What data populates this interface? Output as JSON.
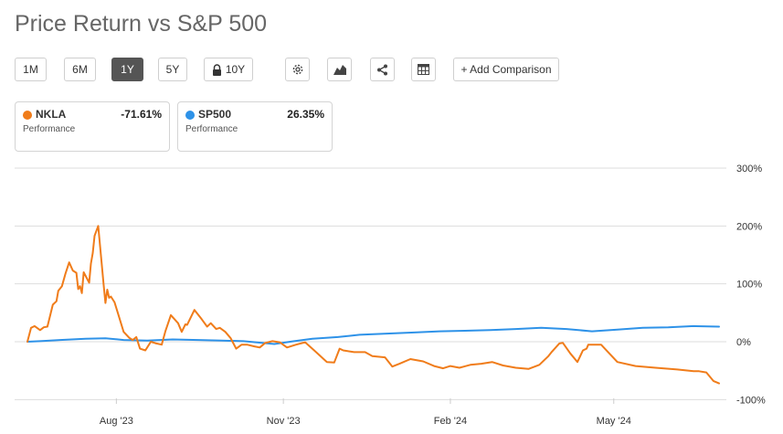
{
  "title": "Price Return vs S&P 500",
  "toolbar": {
    "ranges": [
      "1M",
      "6M",
      "1Y",
      "5Y",
      "10Y"
    ],
    "active_range": "1Y",
    "add_comparison_label": "+ Add Comparison",
    "icons": [
      "settings-icon",
      "chart-type-icon",
      "share-icon",
      "table-icon"
    ]
  },
  "cards": [
    {
      "ticker": "NKLA",
      "performance": "-71.61%",
      "label": "Performance",
      "color": "#f07c1a"
    },
    {
      "ticker": "SP500",
      "performance": "26.35%",
      "label": "Performance",
      "color": "#2e92e8"
    }
  ],
  "chart_data": {
    "type": "line",
    "title": "",
    "xlabel": "",
    "ylabel": "",
    "ylim": [
      -100,
      300
    ],
    "y_ticks": [
      -100,
      0,
      100,
      200,
      300
    ],
    "y_tick_labels": [
      "-100%",
      "0%",
      "100%",
      "200%",
      "300%"
    ],
    "x_ticks": [
      "Aug '23",
      "Nov '23",
      "Feb '24",
      "May '24"
    ],
    "grid": true,
    "series": [
      {
        "name": "NKLA",
        "color": "#f07c1a",
        "x": [
          "2023-06-13",
          "2023-06-15",
          "2023-06-17",
          "2023-06-20",
          "2023-06-22",
          "2023-06-24",
          "2023-06-27",
          "2023-06-29",
          "2023-06-30",
          "2023-07-02",
          "2023-07-04",
          "2023-07-06",
          "2023-07-08",
          "2023-07-10",
          "2023-07-11",
          "2023-07-12",
          "2023-07-13",
          "2023-07-14",
          "2023-07-17",
          "2023-07-18",
          "2023-07-19",
          "2023-07-20",
          "2023-07-22",
          "2023-07-25",
          "2023-07-26",
          "2023-07-27",
          "2023-07-28",
          "2023-07-29",
          "2023-07-31",
          "2023-08-02",
          "2023-08-05",
          "2023-08-08",
          "2023-08-10",
          "2023-08-12",
          "2023-08-14",
          "2023-08-17",
          "2023-08-20",
          "2023-08-23",
          "2023-08-26",
          "2023-08-28",
          "2023-08-31",
          "2023-09-04",
          "2023-09-06",
          "2023-09-08",
          "2023-09-09",
          "2023-09-13",
          "2023-09-17",
          "2023-09-20",
          "2023-09-22",
          "2023-09-25",
          "2023-09-27",
          "2023-09-30",
          "2023-10-03",
          "2023-10-06",
          "2023-10-09",
          "2023-10-12",
          "2023-10-16",
          "2023-10-19",
          "2023-10-22",
          "2023-10-26",
          "2023-10-30",
          "2023-11-03",
          "2023-11-08",
          "2023-11-13",
          "2023-11-18",
          "2023-11-25",
          "2023-11-29",
          "2023-12-02",
          "2023-12-04",
          "2023-12-10",
          "2023-12-16",
          "2023-12-20",
          "2023-12-27",
          "2023-12-31",
          "2024-01-04",
          "2024-01-10",
          "2024-01-17",
          "2024-01-23",
          "2024-01-28",
          "2024-02-01",
          "2024-02-06",
          "2024-02-12",
          "2024-02-18",
          "2024-02-24",
          "2024-03-01",
          "2024-03-08",
          "2024-03-15",
          "2024-03-21",
          "2024-03-26",
          "2024-03-28",
          "2024-04-01",
          "2024-04-03",
          "2024-04-07",
          "2024-04-11",
          "2024-04-14",
          "2024-04-16",
          "2024-04-17",
          "2024-04-24",
          "2024-05-03",
          "2024-05-13",
          "2024-05-24",
          "2024-06-05",
          "2024-06-14",
          "2024-06-17",
          "2024-06-21",
          "2024-06-25",
          "2024-06-28"
        ],
        "y": [
          0,
          24,
          27,
          20,
          25,
          26,
          64,
          70,
          88,
          96,
          118,
          137,
          123,
          119,
          91,
          96,
          84,
          120,
          102,
          135,
          153,
          183,
          200,
          99,
          67,
          90,
          76,
          78,
          68,
          48,
          17,
          7,
          3,
          8,
          -12,
          -15,
          0,
          -3,
          -5,
          18,
          46,
          32,
          17,
          30,
          29,
          55,
          39,
          26,
          32,
          22,
          24,
          17,
          6,
          -12,
          -5,
          -5,
          -8,
          -10,
          -2,
          1,
          -1,
          -10,
          -5,
          -1,
          -15,
          -35,
          -36,
          -12,
          -15,
          -18,
          -18,
          -25,
          -27,
          -43,
          -38,
          -30,
          -34,
          -42,
          -46,
          -42,
          -45,
          -40,
          -38,
          -35,
          -41,
          -45,
          -47,
          -40,
          -25,
          -17,
          -3,
          -2,
          -20,
          -35,
          -15,
          -12,
          -5,
          -5,
          -35,
          -42,
          -45,
          -48,
          -51,
          -51,
          -53,
          -68,
          -72
        ]
      },
      {
        "name": "SP500",
        "color": "#2e92e8",
        "x": [
          "2023-06-13",
          "2023-06-20",
          "2023-07-01",
          "2023-07-15",
          "2023-07-26",
          "2023-08-05",
          "2023-08-18",
          "2023-09-01",
          "2023-09-15",
          "2023-09-28",
          "2023-10-10",
          "2023-10-27",
          "2023-11-07",
          "2023-11-17",
          "2023-12-01",
          "2023-12-13",
          "2023-12-28",
          "2024-01-12",
          "2024-01-26",
          "2024-02-09",
          "2024-02-23",
          "2024-03-08",
          "2024-03-22",
          "2024-04-05",
          "2024-04-19",
          "2024-05-03",
          "2024-05-17",
          "2024-05-31",
          "2024-06-14",
          "2024-06-28"
        ],
        "y": [
          0,
          1,
          3,
          5,
          6,
          3,
          2,
          4,
          3,
          2,
          1,
          -4,
          1,
          5,
          8,
          12,
          14,
          16,
          18,
          19,
          20,
          22,
          24,
          22,
          18,
          21,
          24,
          25,
          27,
          26
        ]
      }
    ]
  }
}
